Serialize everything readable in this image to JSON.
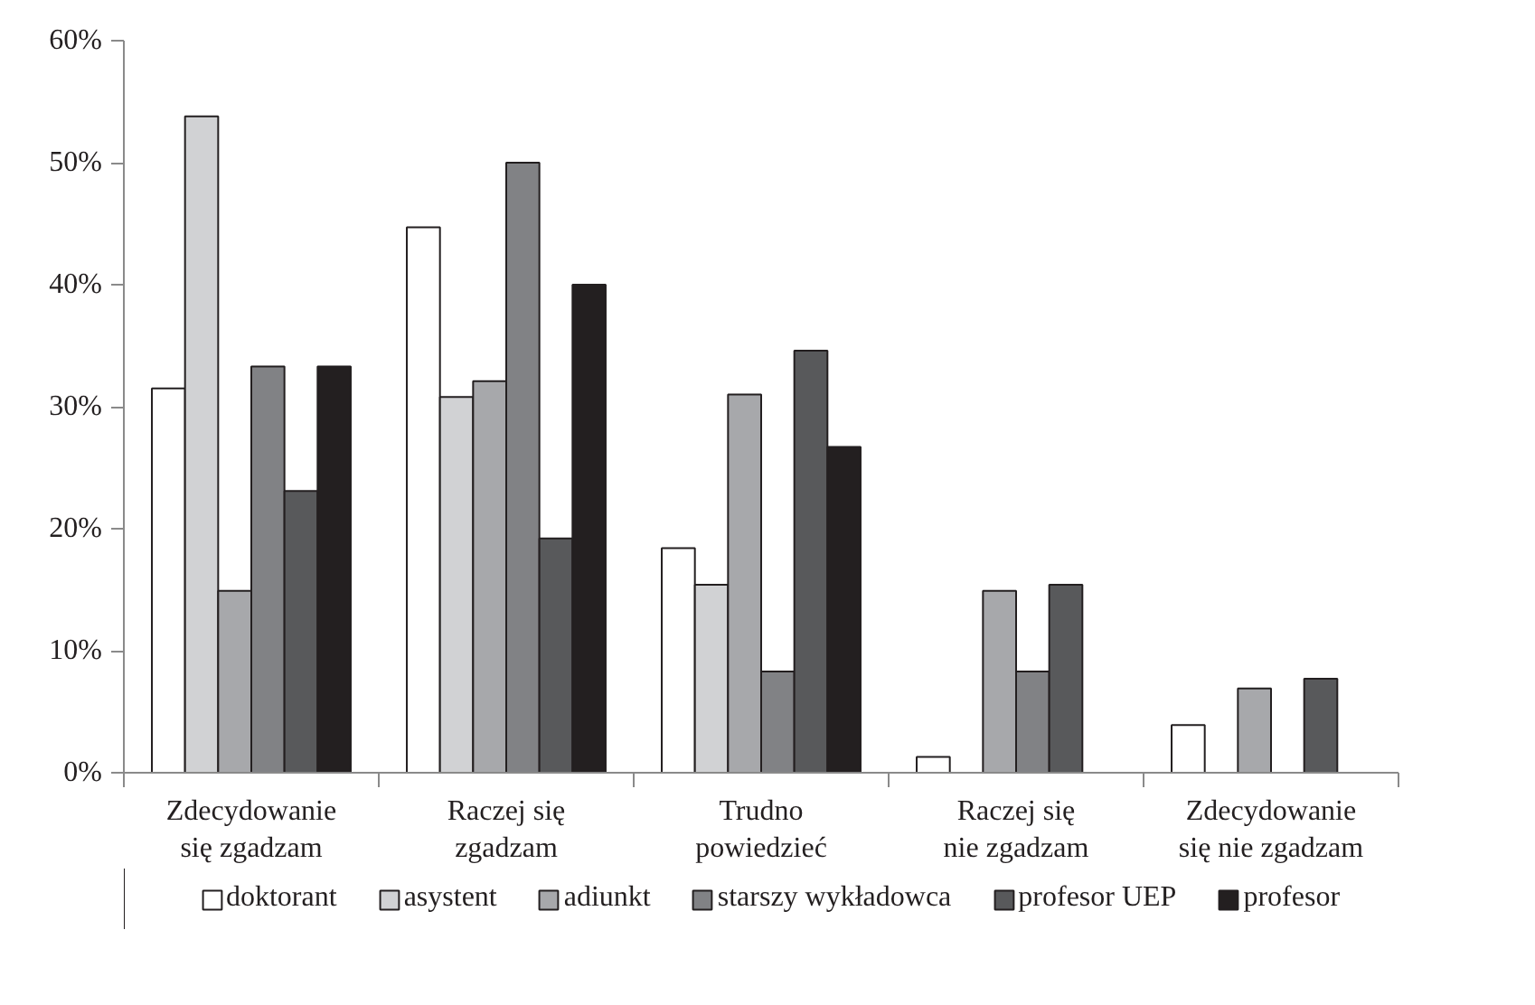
{
  "chart_data": {
    "type": "bar",
    "categories": [
      "Zdecydowanie się zgadzam",
      "Raczej się zgadzam",
      "Trudno powiedzieć",
      "Raczej się nie zgadzam",
      "Zdecydowanie się nie zgadzam"
    ],
    "series": [
      {
        "name": "doktorant",
        "color": "#ffffff",
        "values": [
          31.5,
          44.7,
          18.4,
          1.3,
          3.9
        ]
      },
      {
        "name": "asystent",
        "color": "#d1d2d4",
        "values": [
          53.8,
          30.8,
          15.4,
          0,
          0
        ]
      },
      {
        "name": "adiunkt",
        "color": "#a7a8ab",
        "values": [
          14.9,
          32.1,
          31.0,
          14.9,
          6.9
        ]
      },
      {
        "name": "starszy wykładowca",
        "color": "#818285",
        "values": [
          33.3,
          50.0,
          8.3,
          8.3,
          0
        ]
      },
      {
        "name": "profesor UEP",
        "color": "#58595b",
        "values": [
          23.1,
          19.2,
          34.6,
          15.4,
          7.7
        ]
      },
      {
        "name": "profesor",
        "color": "#231f20",
        "values": [
          33.3,
          40.0,
          26.7,
          0,
          0
        ]
      }
    ],
    "ylim": [
      0,
      60
    ],
    "yticks": [
      {
        "value": 0,
        "label": "0%"
      },
      {
        "value": 10,
        "label": "10%"
      },
      {
        "value": 20,
        "label": "20%"
      },
      {
        "value": 30,
        "label": "30%"
      },
      {
        "value": 40,
        "label": "40%"
      },
      {
        "value": 50,
        "label": "50%"
      },
      {
        "value": 60,
        "label": "60%"
      }
    ],
    "grid": false,
    "legend": "bottom"
  }
}
